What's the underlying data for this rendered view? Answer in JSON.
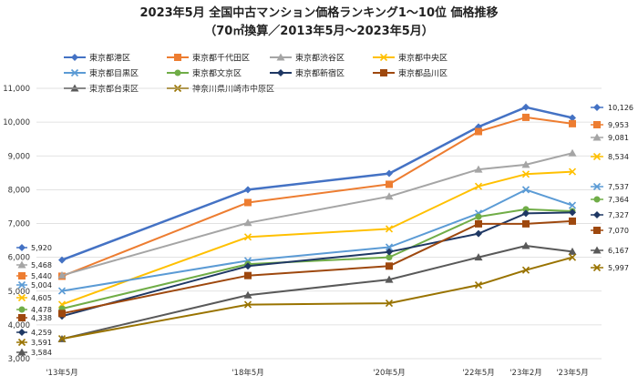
{
  "chart_data": {
    "type": "line",
    "title": "2023年5月 全国中古マンション価格ランキング1～10位 価格推移",
    "subtitle": "（70㎡換算／2013年5月～2023年5月）",
    "xlabel": "",
    "ylabel": "",
    "x": [
      "'13年5月",
      "'18年5月",
      "'20年5月",
      "'22年5月",
      "'23年2月",
      "'23年5月"
    ],
    "ylim": [
      3000,
      11000
    ],
    "yticks": [
      "3,000",
      "4,000",
      "5,000",
      "6,000",
      "7,000",
      "8,000",
      "9,000",
      "10,000",
      "11,000"
    ],
    "grid": true,
    "legend_position": "top",
    "series": [
      {
        "name": "東京都港区",
        "color": "#4472c4",
        "marker": "diamond",
        "width": 2.5,
        "values": [
          5920,
          8000,
          8480,
          9860,
          10440,
          10126
        ],
        "start_label": "5,920",
        "end_label": "10,126"
      },
      {
        "name": "東京都千代田区",
        "color": "#ed7d31",
        "marker": "square",
        "width": 2,
        "values": [
          5440,
          7620,
          8160,
          9720,
          10140,
          9953
        ],
        "start_label": "5,440",
        "end_label": "9,953"
      },
      {
        "name": "東京都渋谷区",
        "color": "#a5a5a5",
        "marker": "triangle",
        "width": 2,
        "values": [
          5468,
          7020,
          7800,
          8600,
          8740,
          9081
        ],
        "start_label": "5,468",
        "end_label": "9,081"
      },
      {
        "name": "東京都中央区",
        "color": "#ffc000",
        "marker": "x",
        "width": 2,
        "values": [
          4605,
          6600,
          6840,
          8100,
          8460,
          8534
        ],
        "start_label": "4,605",
        "end_label": "8,534"
      },
      {
        "name": "東京都目黒区",
        "color": "#5b9bd5",
        "marker": "x",
        "width": 2,
        "values": [
          5004,
          5900,
          6300,
          7300,
          8000,
          7537
        ],
        "start_label": "5,004",
        "end_label": "7,537"
      },
      {
        "name": "東京都文京区",
        "color": "#70ad47",
        "marker": "circle",
        "width": 2,
        "values": [
          4478,
          5800,
          6000,
          7200,
          7420,
          7364
        ],
        "start_label": "4,478",
        "end_label": "7,364"
      },
      {
        "name": "東京都新宿区",
        "color": "#1f3864",
        "marker": "diamond",
        "width": 2,
        "values": [
          4259,
          5740,
          6160,
          6700,
          7300,
          7327
        ],
        "start_label": "4,259",
        "end_label": "7,327"
      },
      {
        "name": "東京都品川区",
        "color": "#9e480e",
        "marker": "square",
        "width": 2,
        "values": [
          4338,
          5460,
          5740,
          6990,
          6990,
          7070
        ],
        "start_label": "4,338",
        "end_label": "7,070"
      },
      {
        "name": "東京都台東区",
        "color": "#595959",
        "marker": "triangle",
        "width": 2,
        "values": [
          3584,
          4880,
          5340,
          6000,
          6340,
          6167
        ],
        "start_label": "3,584",
        "end_label": "6,167"
      },
      {
        "name": "神奈川県川崎市中原区",
        "color": "#997300",
        "marker": "x",
        "width": 2,
        "values": [
          3591,
          4600,
          4640,
          5180,
          5620,
          5997
        ],
        "start_label": "3,591",
        "end_label": "5,997"
      }
    ]
  }
}
